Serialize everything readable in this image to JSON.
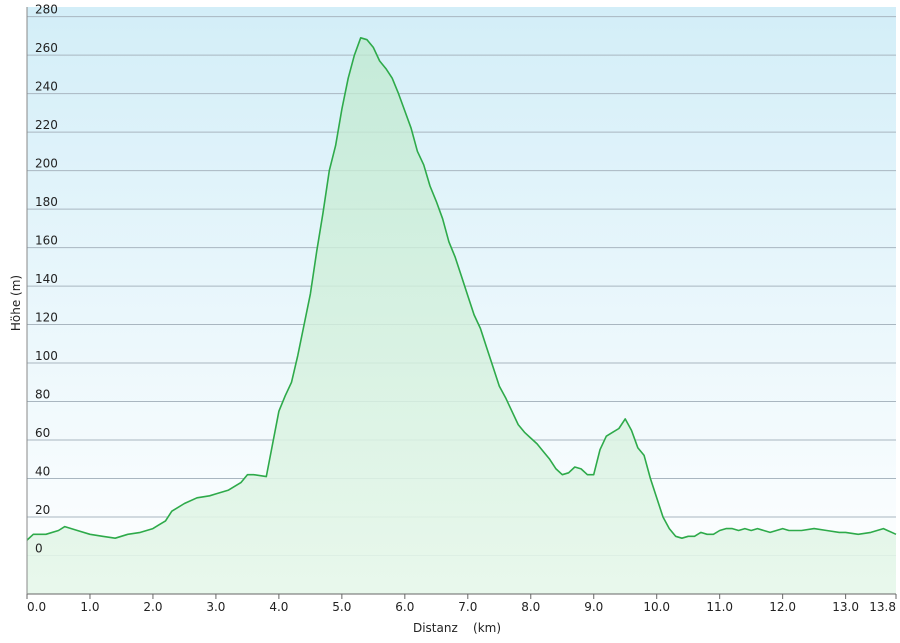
{
  "chart_data": {
    "type": "area",
    "title": "",
    "xlabel": "Distanz    (km)",
    "ylabel": "Höhe (m)",
    "xlim": [
      0,
      13.8
    ],
    "ylim": [
      -20,
      285
    ],
    "x_ticks": [
      0,
      1,
      2,
      3,
      4,
      5,
      6,
      7,
      8,
      9,
      10,
      11,
      12,
      13,
      13.8
    ],
    "x_tick_labels": [
      "0.0",
      "1.0",
      "2.0",
      "3.0",
      "4.0",
      "5.0",
      "6.0",
      "7.0",
      "8.0",
      "9.0",
      "10.0",
      "11.0",
      "12.0",
      "13.0",
      "13.8"
    ],
    "y_ticks": [
      0,
      20,
      40,
      60,
      80,
      100,
      120,
      140,
      160,
      180,
      200,
      220,
      240,
      260,
      280
    ],
    "y_tick_labels": [
      "0",
      "20",
      "40",
      "60",
      "80",
      "100",
      "120",
      "140",
      "160",
      "180",
      "200",
      "220",
      "240",
      "260",
      "280"
    ],
    "grid": true,
    "series": [
      {
        "color": "#2eaa4a",
        "x": [
          0,
          0.1,
          0.3,
          0.5,
          0.6,
          0.8,
          1.0,
          1.2,
          1.4,
          1.6,
          1.8,
          2.0,
          2.1,
          2.2,
          2.3,
          2.5,
          2.7,
          2.9,
          3.0,
          3.2,
          3.4,
          3.5,
          3.6,
          3.8,
          3.9,
          4.0,
          4.1,
          4.2,
          4.3,
          4.4,
          4.5,
          4.6,
          4.7,
          4.8,
          4.9,
          5.0,
          5.1,
          5.2,
          5.3,
          5.4,
          5.5,
          5.6,
          5.7,
          5.8,
          5.9,
          6.0,
          6.1,
          6.2,
          6.3,
          6.4,
          6.5,
          6.6,
          6.7,
          6.8,
          6.9,
          7.0,
          7.1,
          7.2,
          7.3,
          7.4,
          7.5,
          7.6,
          7.7,
          7.8,
          7.9,
          8.0,
          8.1,
          8.2,
          8.3,
          8.4,
          8.5,
          8.6,
          8.7,
          8.8,
          8.9,
          9.0,
          9.1,
          9.2,
          9.3,
          9.4,
          9.5,
          9.6,
          9.7,
          9.8,
          9.9,
          10.0,
          10.1,
          10.2,
          10.3,
          10.4,
          10.5,
          10.6,
          10.7,
          10.8,
          10.9,
          11.0,
          11.1,
          11.2,
          11.3,
          11.4,
          11.5,
          11.6,
          11.7,
          11.8,
          11.9,
          12.0,
          12.1,
          12.3,
          12.5,
          12.7,
          12.9,
          13.0,
          13.2,
          13.4,
          13.6,
          13.8
        ],
        "values": [
          8,
          11,
          11,
          13,
          15,
          13,
          11,
          10,
          9,
          11,
          12,
          14,
          16,
          18,
          23,
          27,
          30,
          31,
          32,
          34,
          38,
          42,
          42,
          41,
          58,
          75,
          83,
          90,
          104,
          120,
          136,
          158,
          178,
          200,
          213,
          232,
          248,
          260,
          269,
          268,
          264,
          257,
          253,
          248,
          240,
          231,
          222,
          210,
          203,
          192,
          184,
          175,
          163,
          155,
          145,
          135,
          125,
          118,
          108,
          98,
          88,
          82,
          75,
          68,
          64,
          61,
          58,
          54,
          50,
          45,
          42,
          43,
          46,
          45,
          42,
          42,
          55,
          62,
          64,
          66,
          71,
          65,
          56,
          52,
          40,
          30,
          20,
          14,
          10,
          9,
          10,
          10,
          12,
          11,
          11,
          13,
          14,
          14,
          13,
          14,
          13,
          14,
          13,
          12,
          13,
          14,
          13,
          13,
          14,
          13,
          12,
          12,
          11,
          12,
          14,
          11
        ]
      }
    ]
  }
}
